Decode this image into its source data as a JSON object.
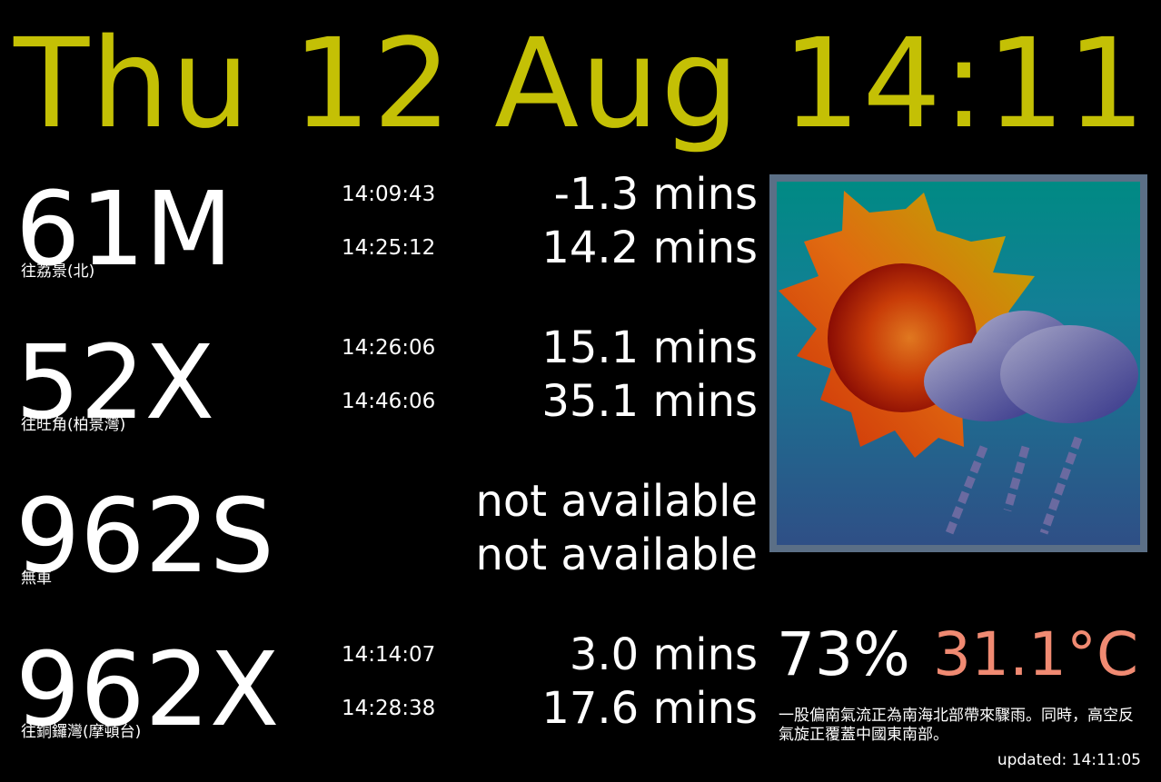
{
  "header": {
    "datetime": "Thu 12 Aug 14:11"
  },
  "colors": {
    "header": "#c4c005",
    "text": "#ffffff",
    "temperature": "#f08a72",
    "background": "#000000"
  },
  "routes": [
    {
      "number": "61M",
      "destination": "往荔景(北)",
      "etas": [
        {
          "time": "14:09:43",
          "mins": "-1.3 mins"
        },
        {
          "time": "14:25:12",
          "mins": "14.2 mins"
        }
      ]
    },
    {
      "number": "52X",
      "destination": "往旺角(柏景灣)",
      "etas": [
        {
          "time": "14:26:06",
          "mins": "15.1 mins"
        },
        {
          "time": "14:46:06",
          "mins": "35.1 mins"
        }
      ]
    },
    {
      "number": "962S",
      "destination": "無車",
      "etas": [
        {
          "time": "",
          "mins": "not available"
        },
        {
          "time": "",
          "mins": "not available"
        }
      ]
    },
    {
      "number": "962X",
      "destination": "往銅鑼灣(摩頓台)",
      "etas": [
        {
          "time": "14:14:07",
          "mins": "3.0 mins"
        },
        {
          "time": "14:28:38",
          "mins": "17.6 mins"
        }
      ]
    }
  ],
  "weather": {
    "icon": "sun-cloud-rain-icon",
    "humidity": "73%",
    "temperature": "31.1°C",
    "forecast": "一股偏南氣流正為南海北部帶來驟雨。同時，高空反氣旋正覆蓋中國東南部。",
    "updated": "updated: 14:11:05"
  }
}
